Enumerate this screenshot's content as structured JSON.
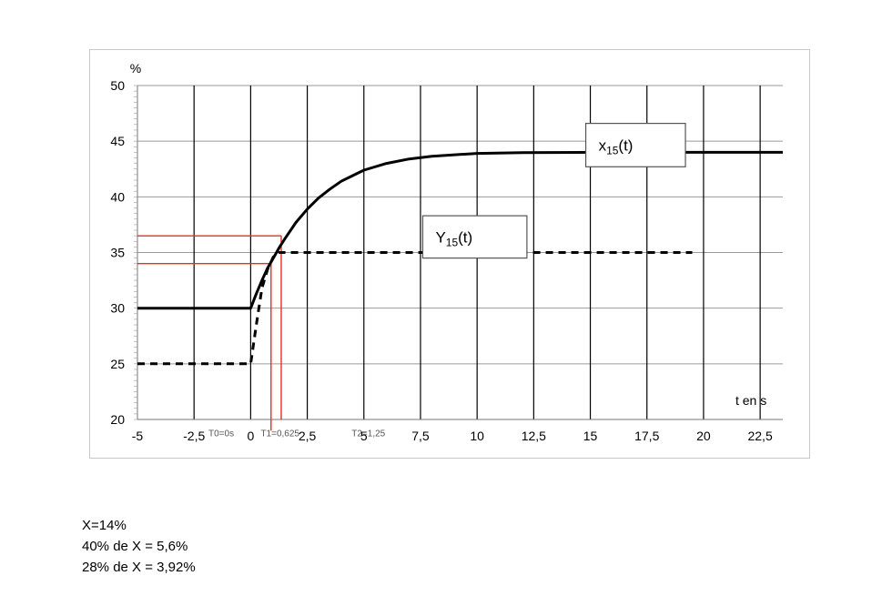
{
  "chart_data": {
    "type": "line",
    "ylabel": "%",
    "xlabel": "t en s",
    "xlim": [
      -5,
      23.5
    ],
    "ylim": [
      20,
      50
    ],
    "x_ticks": [
      "-5",
      "-2,5",
      "0",
      "2,5",
      "5",
      "7,5",
      "10",
      "12,5",
      "15",
      "17,5",
      "20",
      "22,5"
    ],
    "x_tick_values": [
      -5,
      -2.5,
      0,
      2.5,
      5,
      7.5,
      10,
      12.5,
      15,
      17.5,
      20,
      22.5
    ],
    "y_ticks": [
      "20",
      "25",
      "30",
      "35",
      "40",
      "45",
      "50"
    ],
    "y_tick_values": [
      20,
      25,
      30,
      35,
      40,
      45,
      50
    ],
    "grid": true,
    "series": [
      {
        "name": "x15(t)",
        "style": "solid",
        "color": "#000000",
        "x": [
          -5,
          0,
          0.25,
          0.5,
          0.75,
          1,
          1.25,
          1.5,
          2,
          2.5,
          3,
          3.5,
          4,
          5,
          6,
          7,
          8,
          10,
          12,
          15,
          20,
          23.5
        ],
        "y": [
          30,
          30,
          31.3,
          32.5,
          33.6,
          34.5,
          35.4,
          36.2,
          37.7,
          38.9,
          39.9,
          40.7,
          41.4,
          42.4,
          43.0,
          43.4,
          43.65,
          43.9,
          43.97,
          44,
          44,
          44
        ]
      },
      {
        "name": "Y15(t)",
        "style": "dashed",
        "color": "#000000",
        "x": [
          -5,
          0,
          0.25,
          0.5,
          0.75,
          1,
          1.25,
          2,
          5,
          10,
          15,
          19.5
        ],
        "y": [
          25,
          25,
          28.5,
          31.8,
          33.5,
          34.6,
          35,
          35,
          35,
          35,
          35,
          35
        ]
      }
    ],
    "guides": [
      {
        "kind": "h",
        "y": 36.5,
        "x_from": -5,
        "x_to": 1.35,
        "color": "#e8301c"
      },
      {
        "kind": "v",
        "x": 1.35,
        "y_from": 20,
        "y_to": 36.5,
        "color": "#e8301c"
      },
      {
        "kind": "h",
        "y": 34,
        "x_from": -5,
        "x_to": 0.9,
        "color": "#e8301c"
      },
      {
        "kind": "v",
        "x": 0.9,
        "y_from": 19,
        "y_to": 34,
        "color": "#e8301c"
      }
    ],
    "annotations": [
      {
        "text": "T0=0s",
        "x": -1.3,
        "y": 18.8
      },
      {
        "text": "T1=0,625",
        "x": 1.3,
        "y": 18.8
      },
      {
        "text": "T2=1,25",
        "x": 5.2,
        "y": 18.8
      }
    ],
    "legend_boxes": [
      {
        "label_main": "x",
        "label_sub": "15",
        "label_tail": "(t)",
        "x": 14.8,
        "y": 46.6,
        "x2": 19.2,
        "y2": 42.7
      },
      {
        "label_main": "Y",
        "label_sub": "15",
        "label_tail": "(t)",
        "x": 7.6,
        "y": 38.3,
        "x2": 12.2,
        "y2": 34.5
      }
    ]
  },
  "notes": [
    "X=14%",
    "40% de X = 5,6%",
    "28% de X = 3,92%"
  ]
}
